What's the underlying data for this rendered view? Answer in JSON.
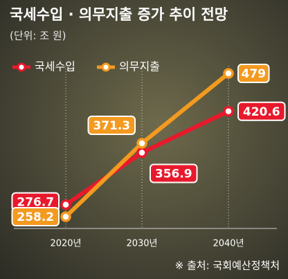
{
  "chart_data": {
    "type": "line",
    "title": "국세수입 · 의무지출 증가 추이 전망",
    "subtitle": "(단위: 조 원)",
    "source": "※ 출처: 국회예산정책처",
    "categories": [
      "2020년",
      "2030년",
      "2040년"
    ],
    "series": [
      {
        "name": "국세수입",
        "color": "#e8192c",
        "values": [
          276.7,
          356.9,
          420.6
        ]
      },
      {
        "name": "의무지출",
        "color": "#f39a1f",
        "values": [
          258.2,
          371.3,
          479
        ]
      }
    ],
    "legend": "top-left"
  }
}
